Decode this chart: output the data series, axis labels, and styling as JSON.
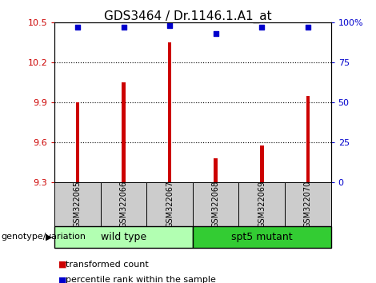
{
  "title": "GDS3464 / Dr.1146.1.A1_at",
  "samples": [
    "GSM322065",
    "GSM322066",
    "GSM322067",
    "GSM322068",
    "GSM322069",
    "GSM322070"
  ],
  "bar_values": [
    9.9,
    10.05,
    10.35,
    9.48,
    9.58,
    9.95
  ],
  "percentile_values": [
    97,
    97,
    98,
    93,
    97,
    97
  ],
  "ylim_left": [
    9.3,
    10.5
  ],
  "ylim_right": [
    0,
    100
  ],
  "yticks_left": [
    9.3,
    9.6,
    9.9,
    10.2,
    10.5
  ],
  "yticks_right": [
    0,
    25,
    50,
    75,
    100
  ],
  "yticklabels_right": [
    "0",
    "25",
    "50",
    "75",
    "100%"
  ],
  "bar_color": "#cc0000",
  "dot_color": "#0000cc",
  "groups": [
    {
      "label": "wild type",
      "color": "#b2ffb2"
    },
    {
      "label": "spt5 mutant",
      "color": "#33cc33"
    }
  ],
  "group_label": "genotype/variation",
  "legend_bar_label": "transformed count",
  "legend_dot_label": "percentile rank within the sample",
  "tick_bg_color": "#cccccc",
  "title_fontsize": 11,
  "bar_width": 0.08
}
